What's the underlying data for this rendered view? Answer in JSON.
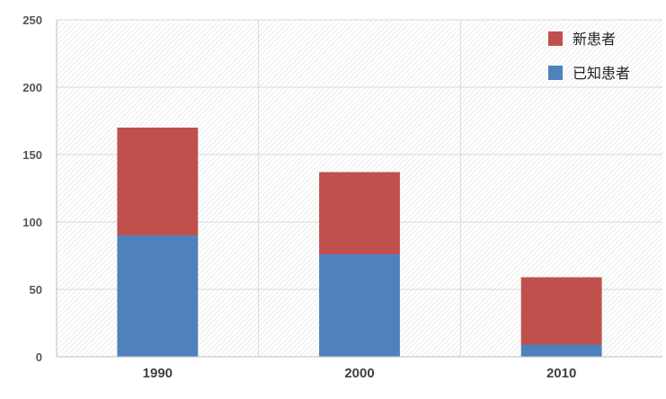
{
  "chart_data": {
    "type": "bar",
    "stacked": true,
    "categories": [
      "1990",
      "2000",
      "2010"
    ],
    "series": [
      {
        "name": "已知患者",
        "color": "#4F81BD",
        "values": [
          90,
          76,
          9
        ]
      },
      {
        "name": "新患者",
        "color": "#C0504D",
        "values": [
          80,
          61,
          50
        ]
      }
    ],
    "ylim": [
      0,
      250
    ],
    "yticks": [
      "0",
      "50",
      "100",
      "150",
      "200",
      "250"
    ],
    "title": "",
    "xlabel": "",
    "ylabel": "",
    "grid": true,
    "legend_position": "top-right",
    "legend_order": [
      "新患者",
      "已知患者"
    ]
  }
}
